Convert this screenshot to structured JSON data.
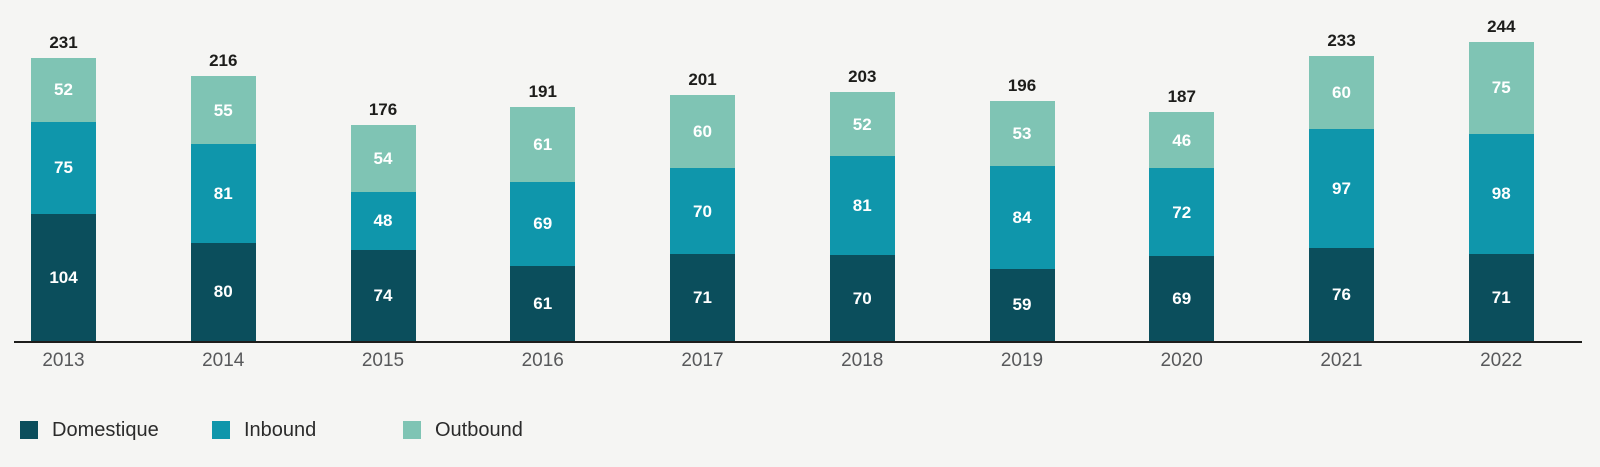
{
  "chart_data": {
    "type": "bar",
    "variant": "stacked-column",
    "title": "",
    "xlabel": "",
    "ylabel": "",
    "grid": false,
    "y_axis_shown": false,
    "ylim": [
      0,
      278
    ],
    "categories": [
      "2013",
      "2014",
      "2015",
      "2016",
      "2017",
      "2018",
      "2019",
      "2020",
      "2021",
      "2022"
    ],
    "series": [
      {
        "name": "Domestique",
        "color": "#0b4e5c",
        "values": [
          104,
          80,
          74,
          61,
          71,
          70,
          59,
          69,
          76,
          71
        ]
      },
      {
        "name": "Inbound",
        "color": "#0f96ab",
        "values": [
          75,
          81,
          48,
          69,
          70,
          81,
          84,
          72,
          97,
          98
        ]
      },
      {
        "name": "Outbound",
        "color": "#7fc4b4",
        "values": [
          52,
          55,
          54,
          61,
          60,
          52,
          53,
          46,
          60,
          75
        ]
      }
    ],
    "totals": [
      231,
      216,
      176,
      191,
      201,
      203,
      196,
      187,
      233,
      244
    ],
    "total_labels_shown": true,
    "segment_labels_shown": true,
    "segment_label_color": "#ffffff",
    "legend": {
      "position": "bottom-left",
      "entries": [
        "Domestique",
        "Inbound",
        "Outbound"
      ]
    }
  },
  "colors": {
    "background": "#f5f5f3",
    "axis_line": "#1d1d1b",
    "total_label": "#1d1d1b",
    "tick_label": "#58595b",
    "legend_label": "#2b2b2b"
  }
}
